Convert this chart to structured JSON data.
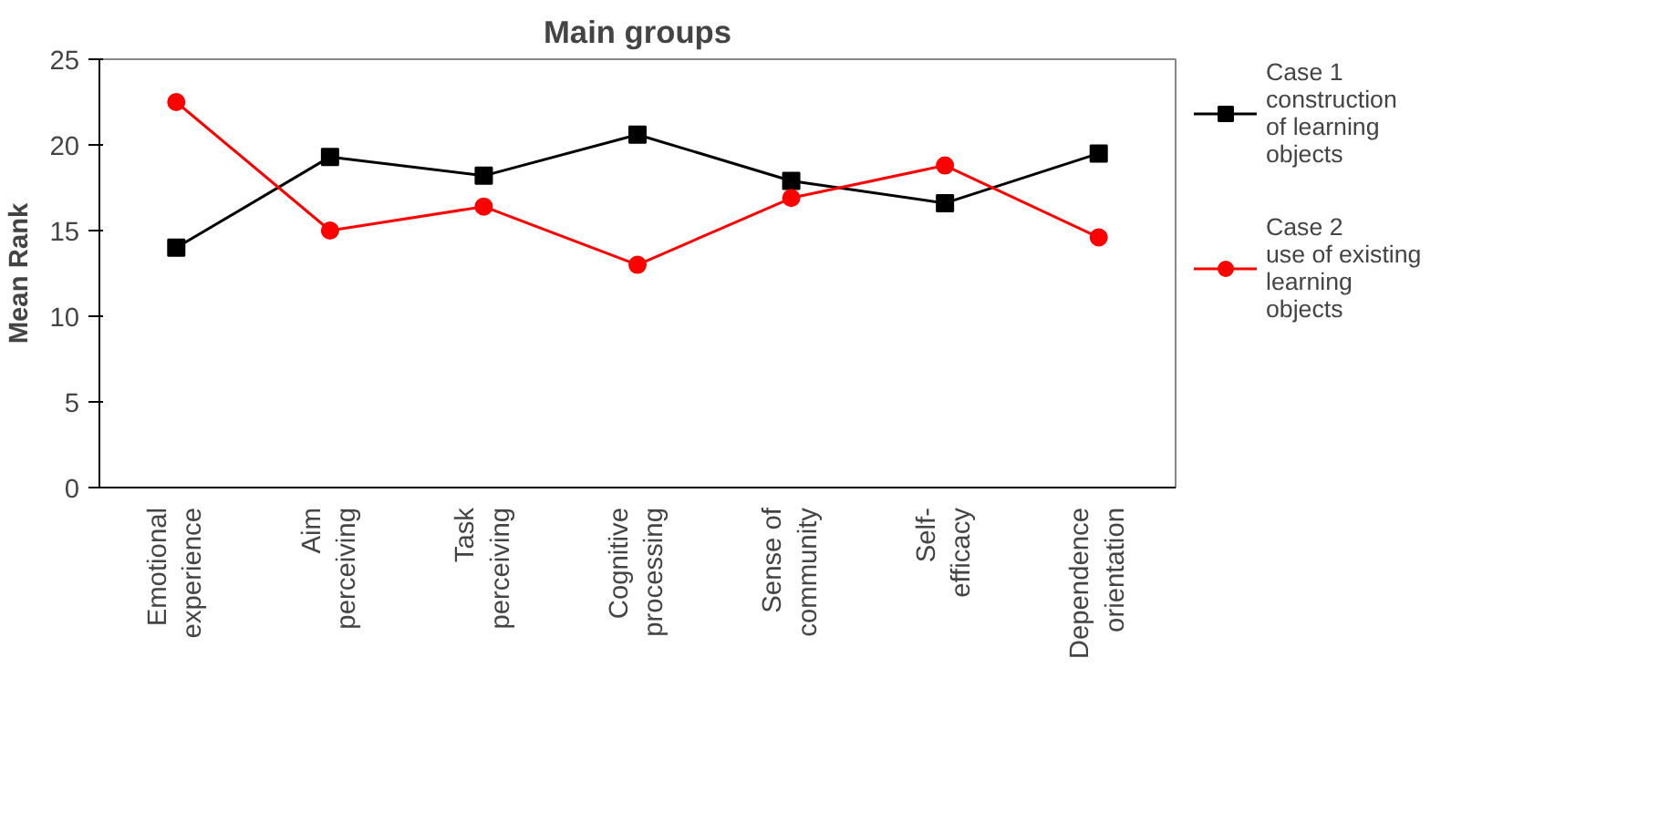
{
  "chart_data": {
    "type": "line",
    "title": "Main groups",
    "ylabel": "Mean Rank",
    "categories": [
      "Emotional\nexperience",
      "Aim\nperceiving",
      "Task\nperceiving",
      "Cognitive\nprocessing",
      "Sense of\ncommunity",
      "Self-\nefficacy",
      "Dependence\norientation"
    ],
    "series": [
      {
        "name": "Case 1\nconstruction\nof learning\nobjects",
        "color": "#000000",
        "marker": "square",
        "values": [
          14.0,
          19.3,
          18.2,
          20.6,
          17.9,
          16.6,
          19.5
        ]
      },
      {
        "name": "Case 2\nuse of existing\nlearning\nobjects",
        "color": "#ff0000",
        "marker": "circle",
        "values": [
          22.5,
          15.0,
          16.4,
          13.0,
          16.9,
          18.8,
          14.6
        ]
      }
    ],
    "ylim": [
      0,
      25
    ],
    "yticks": [
      0,
      5,
      10,
      15,
      20,
      25
    ],
    "grid": false,
    "legend": "right"
  }
}
